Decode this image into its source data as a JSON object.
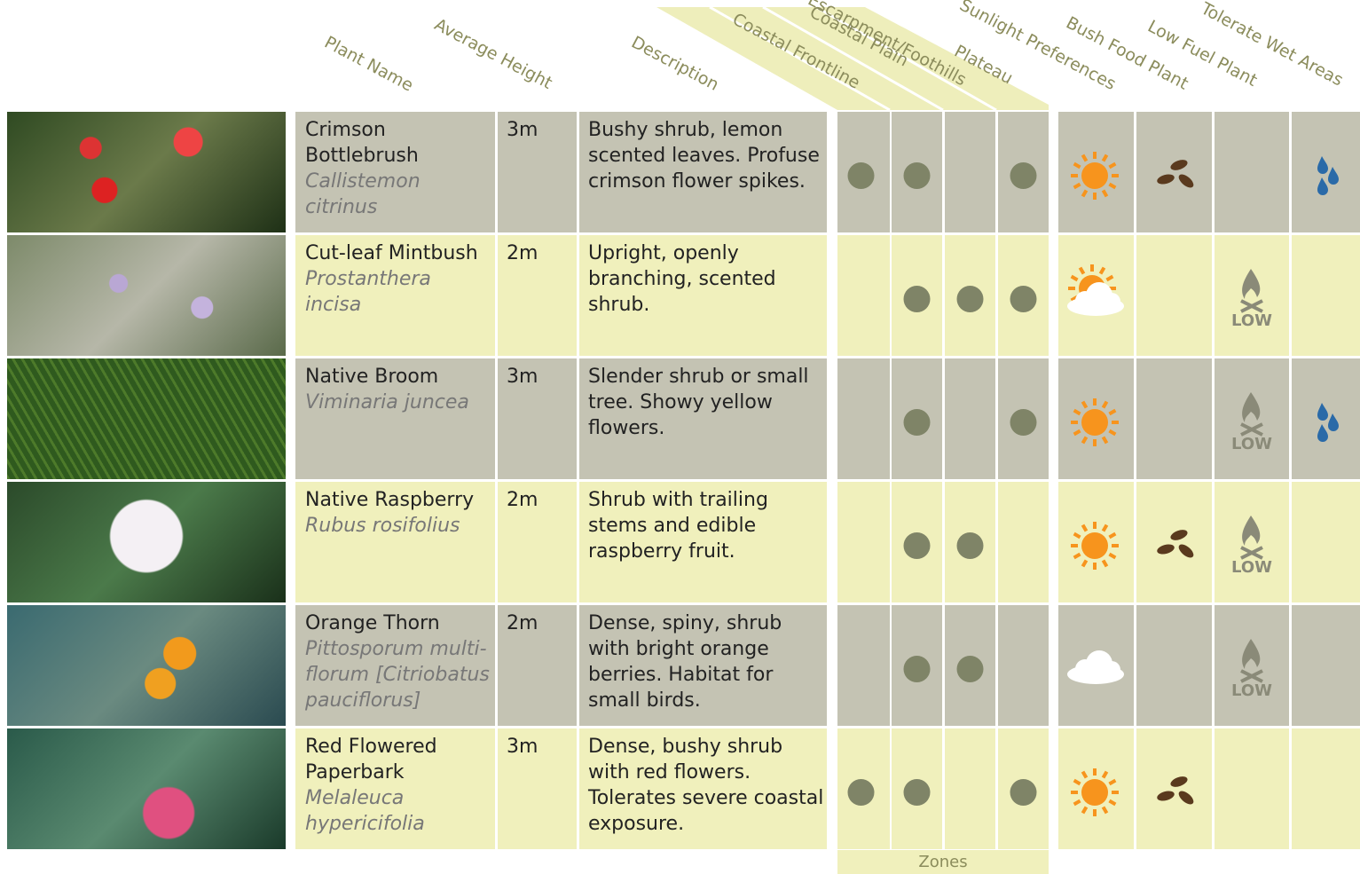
{
  "header": {
    "plant_name": "Plant Name",
    "average_height": "Average Height",
    "description": "Description",
    "coastal_frontline": "Coastal Frontline",
    "coastal_plain": "Coastal Plain",
    "escarpment": "Escarpment/Foothills",
    "plateau": "Plateau",
    "sunlight": "Sunlight Preferences",
    "bush_food": "Bush Food Plant",
    "low_fuel": "Low Fuel Plant",
    "wet_areas": "Tolerate Wet Areas"
  },
  "footer": {
    "zones": "Zones"
  },
  "low_label": "LOW",
  "rows": [
    {
      "name": "Crimson Bottlebrush",
      "scientific": "Callistemon citrinus",
      "height": "3m",
      "description": "Bushy shrub, lemon scented leaves. Profuse crimson flower spikes.",
      "zones": [
        true,
        true,
        false,
        true
      ],
      "sunlight": "sun",
      "bush_food": true,
      "low_fuel": false,
      "wet_areas": true
    },
    {
      "name": "Cut-leaf Mintbush",
      "scientific": "Prostanthera incisa",
      "height": "2m",
      "description": "Upright, openly branching, scented shrub.",
      "zones": [
        false,
        true,
        true,
        true
      ],
      "sunlight": "partial",
      "bush_food": false,
      "low_fuel": true,
      "wet_areas": false
    },
    {
      "name": "Native Broom",
      "scientific": "Viminaria juncea",
      "height": "3m",
      "description": "Slender shrub or small tree. Showy yellow flowers.",
      "zones": [
        false,
        true,
        false,
        true
      ],
      "sunlight": "sun",
      "bush_food": false,
      "low_fuel": true,
      "wet_areas": true
    },
    {
      "name": "Native Raspberry",
      "scientific": "Rubus rosifolius",
      "height": "2m",
      "description": "Shrub with trailing stems and edible raspberry fruit.",
      "zones": [
        false,
        true,
        true,
        false
      ],
      "sunlight": "sun",
      "bush_food": true,
      "low_fuel": true,
      "wet_areas": false
    },
    {
      "name": "Orange Thorn",
      "scientific": "Pittosporum multi-florum [Citriobatus pauciflorus]",
      "height": "2m",
      "description": "Dense, spiny, shrub with bright orange berries. Habitat for small birds.",
      "zones": [
        false,
        true,
        true,
        false
      ],
      "sunlight": "shade",
      "bush_food": false,
      "low_fuel": true,
      "wet_areas": false
    },
    {
      "name": "Red Flowered Paperbark",
      "scientific": "Melaleuca hypericifolia",
      "height": "3m",
      "description": "Dense, bushy shrub with red flowers. Tolerates severe coastal exposure.",
      "zones": [
        true,
        true,
        false,
        true
      ],
      "sunlight": "sun",
      "bush_food": true,
      "low_fuel": false,
      "wet_areas": false
    }
  ]
}
